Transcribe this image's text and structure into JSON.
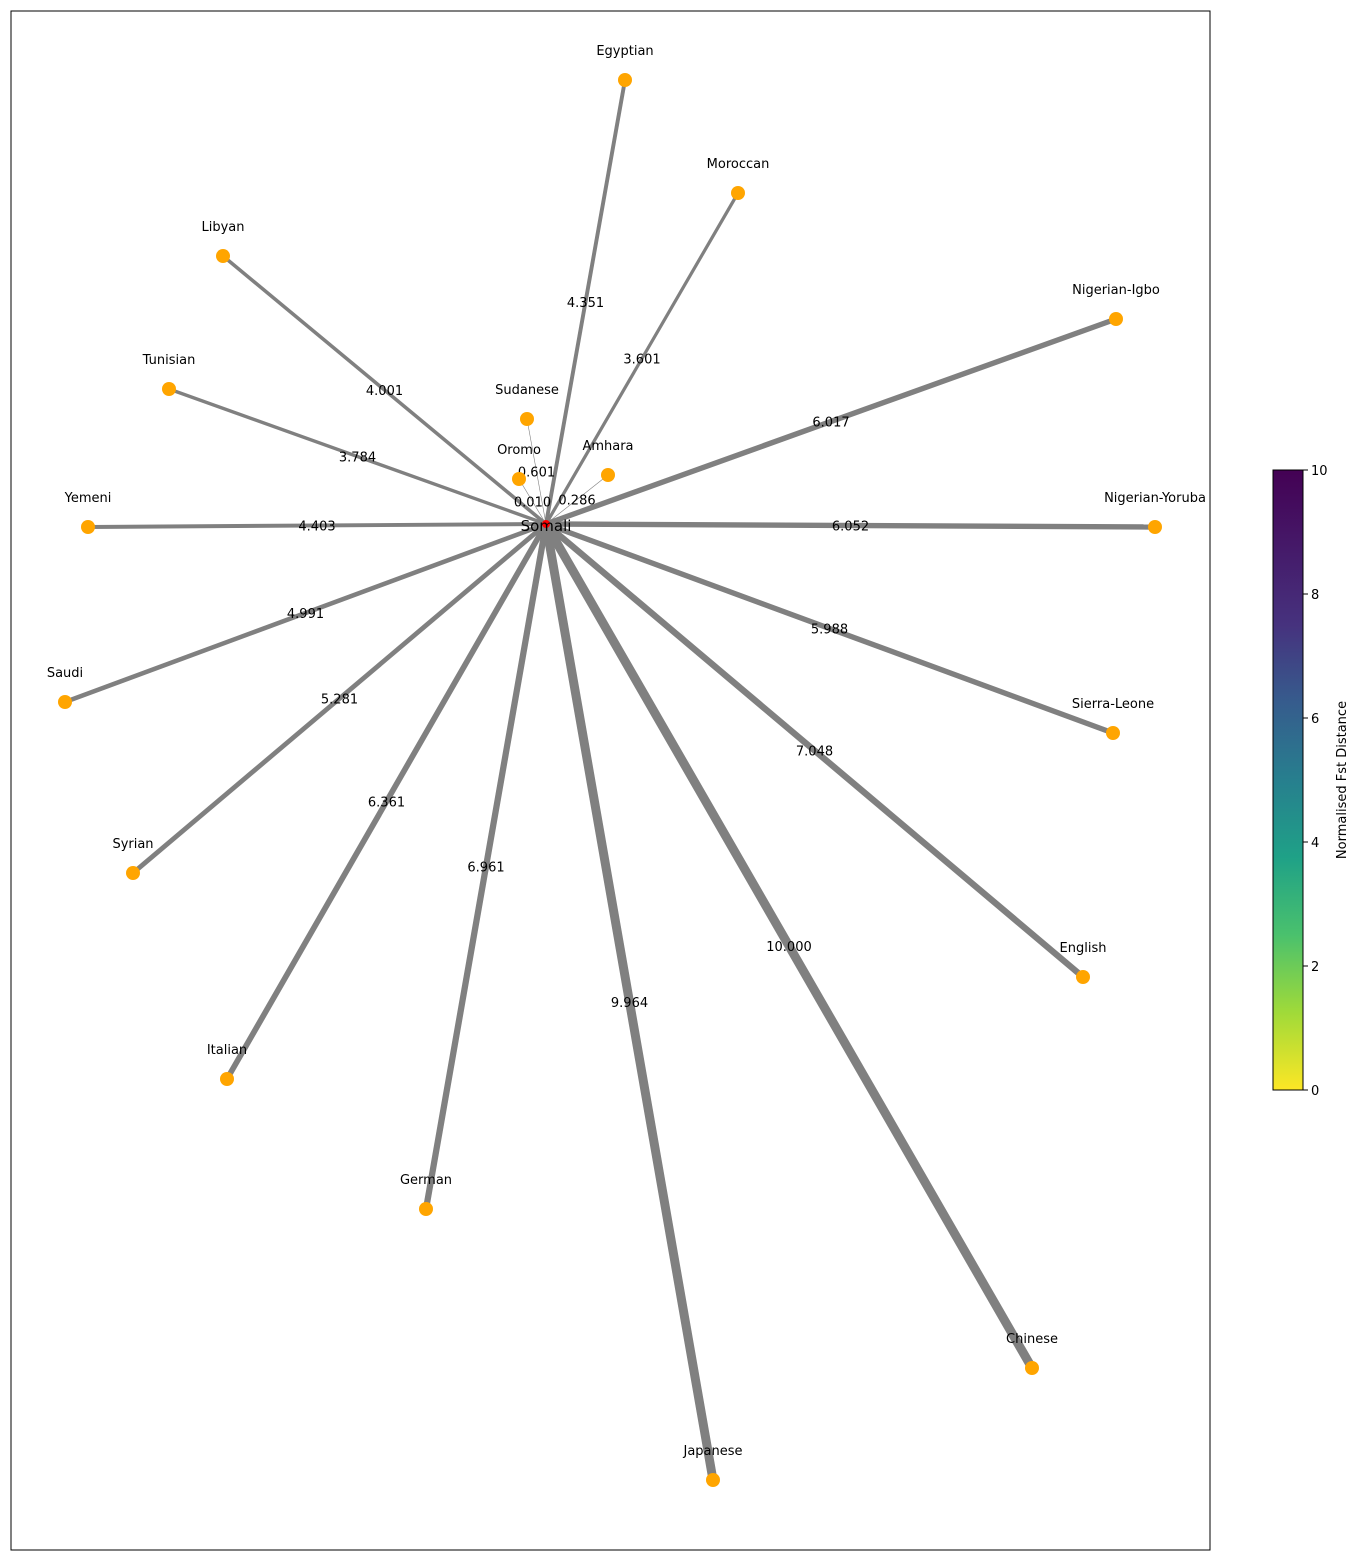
{
  "center": {
    "name": "Somali"
  },
  "nodes": [
    {
      "name": "Egyptian",
      "distance": "4.351"
    },
    {
      "name": "Moroccan",
      "distance": "3.601"
    },
    {
      "name": "Libyan",
      "distance": "4.001"
    },
    {
      "name": "Nigerian-Igbo",
      "distance": "6.017"
    },
    {
      "name": "Tunisian",
      "distance": "3.784"
    },
    {
      "name": "Sudanese",
      "distance": "0.601"
    },
    {
      "name": "Oromo",
      "distance": "0.010"
    },
    {
      "name": "Amhara",
      "distance": "0.286"
    },
    {
      "name": "Yemeni",
      "distance": "4.403"
    },
    {
      "name": "Nigerian-Yoruba",
      "distance": "6.052"
    },
    {
      "name": "Saudi",
      "distance": "4.991"
    },
    {
      "name": "Sierra-Leone",
      "distance": "5.988"
    },
    {
      "name": "Syrian",
      "distance": "5.281"
    },
    {
      "name": "English",
      "distance": "7.048"
    },
    {
      "name": "Italian",
      "distance": "6.361"
    },
    {
      "name": "German",
      "distance": "6.961"
    },
    {
      "name": "Chinese",
      "distance": "10.000"
    },
    {
      "name": "Japanese",
      "distance": "9.964"
    }
  ],
  "colorbar": {
    "title": "Normalised Fst Distance",
    "ticks": [
      "0",
      "2",
      "4",
      "6",
      "8",
      "10"
    ],
    "colormap": "viridis_r"
  },
  "colors": {
    "node": "#ffa500",
    "center": "#ff0000",
    "edge": "#808080"
  }
}
